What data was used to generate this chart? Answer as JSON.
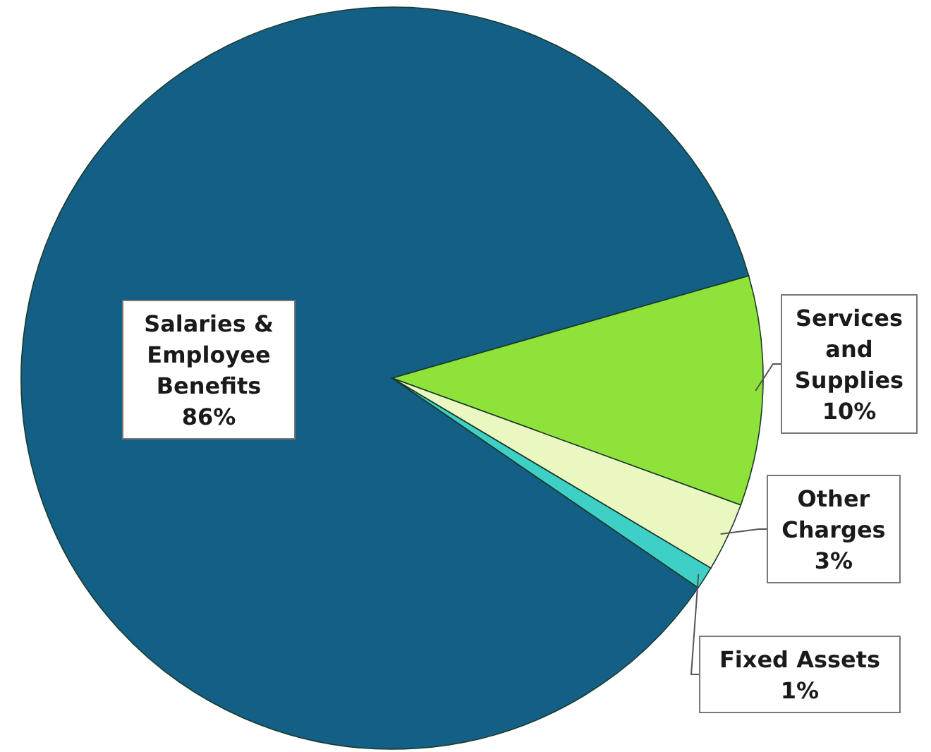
{
  "chart_data": {
    "type": "pie",
    "categories": [
      "Salaries & Employee Benefits",
      "Services and Supplies",
      "Other Charges",
      "Fixed Assets"
    ],
    "values": [
      86,
      10,
      3,
      1
    ],
    "colors": [
      "#135f85",
      "#8fe23a",
      "#eaf7c0",
      "#3ecfc6"
    ],
    "value_labels": [
      "86%",
      "10%",
      "3%",
      "1%"
    ]
  }
}
